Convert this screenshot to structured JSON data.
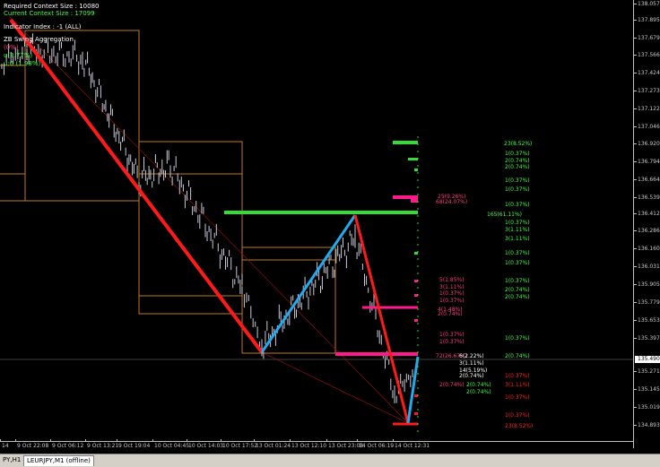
{
  "info": {
    "required_context": "Required Context Size : 10080",
    "current_context": "Current Context Size : 17099",
    "indicator_index": "Indicator Index : -1 (ALL)",
    "aggregation": "ZB Swing Aggregation",
    "line1": "(0%)",
    "line2": "u(3.77%)",
    "line3": "u:6 (1.98%)",
    "line4": ""
  },
  "price_axis": {
    "labels": [
      "138.0575",
      "137.8950",
      "137.6795",
      "137.5660",
      "137.4240",
      "137.2730",
      "137.1225",
      "137.0460",
      "136.9200",
      "136.7940",
      "136.6645",
      "136.5390",
      "136.4125",
      "136.2865",
      "136.1605",
      "136.0310",
      "135.9050",
      "135.7790",
      "135.6530",
      "135.3975",
      "135.2715",
      "135.1455",
      "135.0195",
      "134.8935"
    ],
    "current_price": "135.4900"
  },
  "time_axis": {
    "labels": [
      "14",
      "9 Oct 22:08",
      "9 Oct 06:12",
      "9 Oct 13:21",
      "9 Oct 19:04",
      "10 Oct 04:45",
      "10 Oct 14:03",
      "10 Oct 17:52",
      "13 Oct 01:24",
      "13 Oct 12:10",
      "13 Oct 23:08",
      "14 Oct 06:19",
      "14 Oct 12:31"
    ]
  },
  "tabs": {
    "left": "PY,H1",
    "active": "LEURJPY,M1 (offline)"
  },
  "levels_green": [
    "23(8.52%)",
    "1(0.37%)",
    "2(0.74%)",
    "2(0.74%)",
    "1(0.37%)",
    "1(0.37%)",
    "1(0.37%)",
    "165(61.11%)",
    "1(0.37%)",
    "3(1.11%)",
    "3(1.11%)",
    "1(0.37%)",
    "1(0.37%)",
    "1(0.37%)",
    "2(0.74%)",
    "2(0.74%)",
    "1(0.37%)",
    "2(0.74%)",
    "2(0.74%)",
    "2(0.74%)"
  ],
  "levels_pink": [
    "25(9.26%)",
    "68(24.07%)",
    "5(1.85%)",
    "3(1.11%)",
    "1(0.37%)",
    "1(0.37%)",
    "4(1.48%)",
    "2(0.74%)",
    "1(0.37%)",
    "1(0.37%)",
    "72(26.67%)",
    "2(0.74%)"
  ],
  "levels_red": [
    "1(0.37%)",
    "3(1.11%)",
    "1(0.37%)",
    "1(0.37%)",
    "23(8.52%)"
  ],
  "levels_white": [
    "6(2.22%)",
    "3(1.11%)",
    "14(5.19%)",
    "2(0.74%)"
  ],
  "colors": {
    "background": "#000000",
    "red_trend": "#ff1a1a",
    "blue_trend": "#22aaee",
    "green_level": "#33dd33",
    "pink_level": "#ff1a8c",
    "box_outline": "#c07a20",
    "bars": "#c8c8d8"
  }
}
